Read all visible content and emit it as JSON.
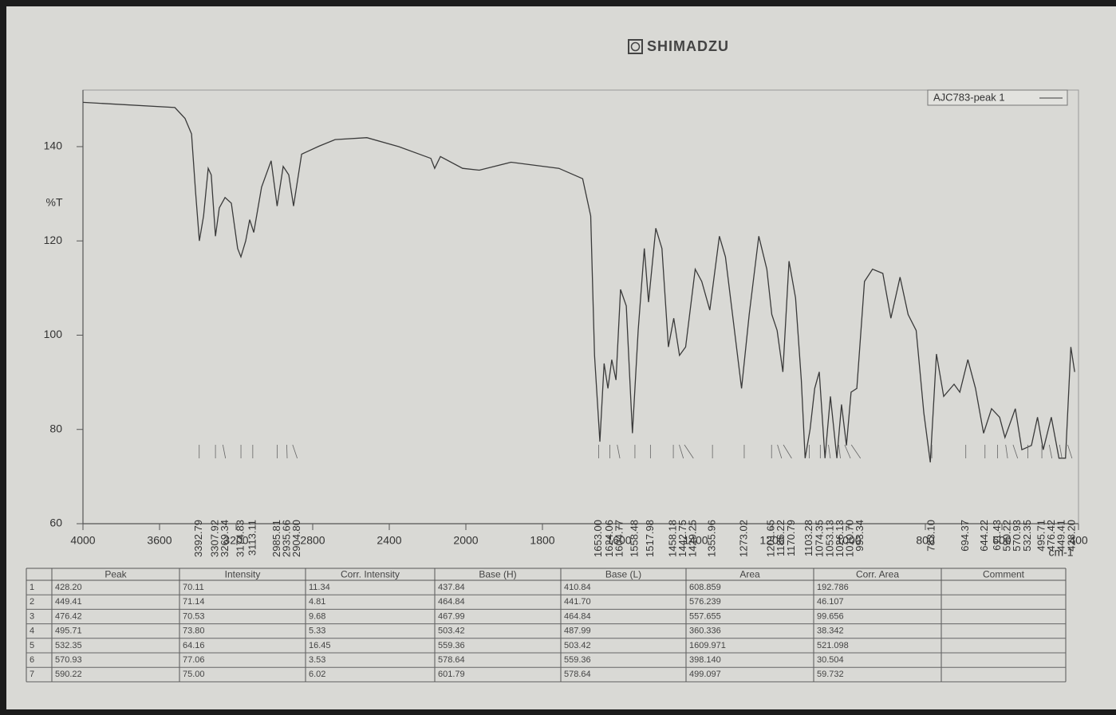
{
  "header": {
    "brand": "SHIMADZU"
  },
  "chart_data": {
    "type": "line",
    "y_label": "%T",
    "x_unit": "cm-1",
    "xlim": [
      4000,
      400
    ],
    "ylim": [
      60,
      152
    ],
    "xticks": [
      4000,
      3600,
      3200,
      2800,
      2400,
      2000,
      1800,
      1600,
      1400,
      1200,
      1000,
      800,
      600,
      400
    ],
    "yticks": [
      60,
      80,
      100,
      120,
      140
    ],
    "legend": "top-right",
    "x": [
      4000,
      3520,
      3467,
      3433,
      3412,
      3392,
      3370,
      3346,
      3330,
      3308,
      3288,
      3258,
      3225,
      3192,
      3175,
      3150,
      3129,
      3108,
      3067,
      3017,
      2986,
      2954,
      2925,
      2900,
      2858,
      2767,
      2683,
      2517,
      2350,
      2183,
      2163,
      2133,
      2017,
      1965,
      1882,
      1757,
      1695,
      1674,
      1664,
      1650,
      1639,
      1629,
      1619,
      1608,
      1596,
      1581,
      1565,
      1550,
      1534,
      1523,
      1504,
      1488,
      1471,
      1457,
      1442,
      1426,
      1401,
      1384,
      1363,
      1338,
      1322,
      1305,
      1280,
      1260,
      1235,
      1214,
      1201,
      1187,
      1172,
      1156,
      1139,
      1124,
      1114,
      1101,
      1089,
      1077,
      1062,
      1048,
      1031,
      1019,
      1006,
      994,
      979,
      959,
      938,
      911,
      890,
      866,
      845,
      824,
      804,
      787,
      771,
      752,
      725,
      710,
      689,
      669,
      648,
      627,
      606,
      592,
      565,
      548,
      523,
      507,
      492,
      471,
      451,
      434,
      420,
      410
    ],
    "series": [
      {
        "name": "AJC783-peak 1",
        "color": "#3a3a3a",
        "values": [
          149.4,
          148.3,
          146,
          142.7,
          130.5,
          120,
          125.3,
          135.4,
          134,
          121,
          127,
          129.2,
          128,
          118.4,
          116.6,
          120,
          124.5,
          121.8,
          131.4,
          137,
          127.4,
          135.8,
          134,
          127.4,
          138.4,
          140.1,
          141.5,
          141.9,
          140,
          137.5,
          135.4,
          137.9,
          135.4,
          135,
          136.7,
          135.4,
          133.2,
          125.3,
          95.7,
          77.4,
          94,
          88.7,
          94.8,
          90.5,
          109.7,
          106.2,
          79.2,
          101,
          118.4,
          107,
          122.7,
          118.4,
          97.5,
          103.6,
          95.7,
          97.5,
          114,
          111.4,
          105.3,
          121,
          116.6,
          105.3,
          88.7,
          104.4,
          121,
          114,
          104.4,
          101,
          92.2,
          115.7,
          107.9,
          90.5,
          73.9,
          80,
          88.7,
          92.2,
          73.9,
          87,
          73.9,
          85.3,
          76.6,
          87.9,
          88.7,
          111.4,
          114,
          113.1,
          103.6,
          112.3,
          104.4,
          101,
          83.5,
          73,
          96,
          87,
          89.6,
          87.9,
          94.8,
          88.7,
          79.2,
          84.4,
          82.6,
          78.3,
          84.4,
          75.7,
          76.6,
          82.6,
          75.7,
          82.6,
          73.9,
          73.9,
          97.5,
          92.2
        ]
      }
    ],
    "peak_labels": [
      {
        "value": 3392.79,
        "label": "3392.79"
      },
      {
        "value": 3307.92,
        "label": "3307.92"
      },
      {
        "value": 3269.34,
        "label": "3269.34"
      },
      {
        "value": 3174.83,
        "label": "3174.83"
      },
      {
        "value": 3113.11,
        "label": "3113.11"
      },
      {
        "value": 2985.81,
        "label": "2985.81"
      },
      {
        "value": 2935.66,
        "label": "2935.66"
      },
      {
        "value": 2904.8,
        "label": "2904.80"
      },
      {
        "value": 1653.0,
        "label": "1653.00"
      },
      {
        "value": 1624.06,
        "label": "1624.06"
      },
      {
        "value": 1604.77,
        "label": "1604.77"
      },
      {
        "value": 1558.48,
        "label": "1558.48"
      },
      {
        "value": 1517.98,
        "label": "1517.98"
      },
      {
        "value": 1458.18,
        "label": "1458.18"
      },
      {
        "value": 1442.75,
        "label": "1442.75"
      },
      {
        "value": 1429.25,
        "label": "1429.25"
      },
      {
        "value": 1355.96,
        "label": "1355.96"
      },
      {
        "value": 1273.02,
        "label": "1273.02"
      },
      {
        "value": 1201.65,
        "label": "1201.65"
      },
      {
        "value": 1186.22,
        "label": "1186.22"
      },
      {
        "value": 1170.79,
        "label": "1170.79"
      },
      {
        "value": 1103.28,
        "label": "1103.28"
      },
      {
        "value": 1074.35,
        "label": "1074.35"
      },
      {
        "value": 1053.13,
        "label": "1053.13"
      },
      {
        "value": 1026.13,
        "label": "1026.13"
      },
      {
        "value": 1010.7,
        "label": "1010.70"
      },
      {
        "value": 993.34,
        "label": "993.34"
      },
      {
        "value": 783.1,
        "label": "783.10"
      },
      {
        "value": 694.37,
        "label": "694.37"
      },
      {
        "value": 644.22,
        "label": "644.22"
      },
      {
        "value": 611.43,
        "label": "611.43"
      },
      {
        "value": 590.22,
        "label": "590.22"
      },
      {
        "value": 570.93,
        "label": "570.93"
      },
      {
        "value": 532.35,
        "label": "532.35"
      },
      {
        "value": 495.71,
        "label": "495.71"
      },
      {
        "value": 476.42,
        "label": "476.42"
      },
      {
        "value": 449.41,
        "label": "449.41"
      },
      {
        "value": 428.2,
        "label": "428.20"
      }
    ]
  },
  "table": {
    "columns": [
      "Peak",
      "Intensity",
      "Corr. Intensity",
      "Base (H)",
      "Base (L)",
      "Area",
      "Corr. Area",
      "Comment"
    ],
    "rows": [
      [
        "1",
        "428.20",
        "70.11",
        "11.34",
        "437.84",
        "410.84",
        "608.859",
        "192.786"
      ],
      [
        "2",
        "449.41",
        "71.14",
        "4.81",
        "464.84",
        "441.70",
        "576.239",
        "46.107"
      ],
      [
        "3",
        "476.42",
        "70.53",
        "9.68",
        "467.99",
        "464.84",
        "557.655",
        "99.656"
      ],
      [
        "4",
        "495.71",
        "73.80",
        "5.33",
        "503.42",
        "487.99",
        "360.336",
        "38.342"
      ],
      [
        "5",
        "532.35",
        "64.16",
        "16.45",
        "559.36",
        "503.42",
        "1609.971",
        "521.098"
      ],
      [
        "6",
        "570.93",
        "77.06",
        "3.53",
        "578.64",
        "559.36",
        "398.140",
        "30.504"
      ],
      [
        "7",
        "590.22",
        "75.00",
        "6.02",
        "601.79",
        "578.64",
        "499.097",
        "59.732"
      ]
    ]
  }
}
